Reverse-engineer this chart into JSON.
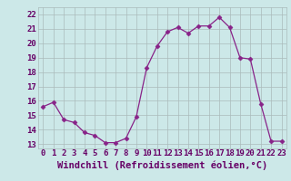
{
  "x": [
    0,
    1,
    2,
    3,
    4,
    5,
    6,
    7,
    8,
    9,
    10,
    11,
    12,
    13,
    14,
    15,
    16,
    17,
    18,
    19,
    20,
    21,
    22,
    23
  ],
  "y": [
    15.6,
    15.9,
    14.7,
    14.5,
    13.8,
    13.6,
    13.1,
    13.1,
    13.4,
    14.9,
    18.3,
    19.8,
    20.8,
    21.1,
    20.7,
    21.2,
    21.2,
    21.8,
    21.1,
    19.0,
    18.9,
    15.8,
    13.2,
    13.2
  ],
  "line_color": "#882288",
  "marker": "D",
  "marker_size": 2.5,
  "bg_color": "#cce8e8",
  "grid_color": "#aabbbb",
  "xlabel": "Windchill (Refroidissement éolien,°C)",
  "xlabel_fontsize": 7.5,
  "xlabel_color": "#660066",
  "tick_color": "#660066",
  "ytick_labels": [
    "13",
    "14",
    "15",
    "16",
    "17",
    "18",
    "19",
    "20",
    "21",
    "22"
  ],
  "xtick_labels": [
    "0",
    "1",
    "2",
    "3",
    "4",
    "5",
    "6",
    "7",
    "8",
    "9",
    "10",
    "11",
    "12",
    "13",
    "14",
    "15",
    "16",
    "17",
    "18",
    "19",
    "20",
    "21",
    "22",
    "23"
  ],
  "ylim": [
    12.7,
    22.5
  ],
  "xlim": [
    -0.5,
    23.5
  ],
  "yticks": [
    13,
    14,
    15,
    16,
    17,
    18,
    19,
    20,
    21,
    22
  ],
  "tick_fontsize": 6.5
}
